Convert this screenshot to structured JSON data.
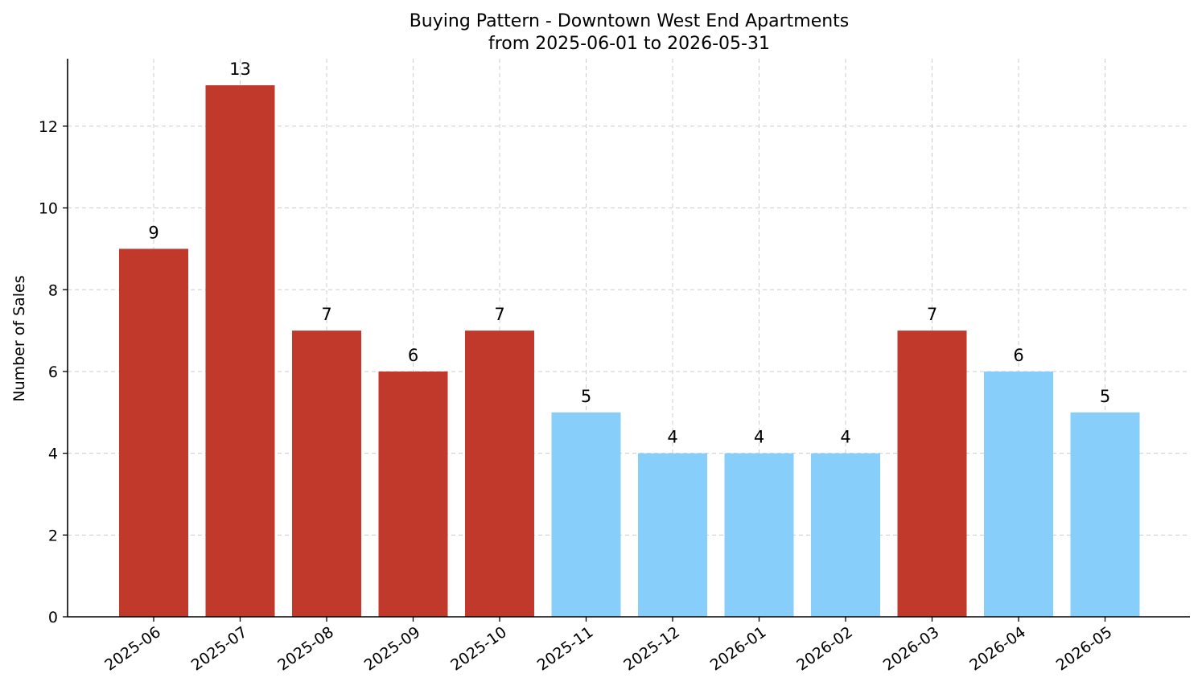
{
  "chart_data": {
    "type": "bar",
    "title": "Buying Pattern - Downtown West End Apartments",
    "subtitle": "from 2025-06-01 to 2026-05-31",
    "xlabel": "",
    "ylabel": "Number of Sales",
    "categories": [
      "2025-06",
      "2025-07",
      "2025-08",
      "2025-09",
      "2025-10",
      "2025-11",
      "2025-12",
      "2026-01",
      "2026-02",
      "2026-03",
      "2026-04",
      "2026-05"
    ],
    "values": [
      9,
      13,
      7,
      6,
      7,
      5,
      4,
      4,
      4,
      7,
      6,
      5
    ],
    "bar_colors": [
      "#c0392b",
      "#c0392b",
      "#c0392b",
      "#c0392b",
      "#c0392b",
      "#87cefa",
      "#87cefa",
      "#87cefa",
      "#87cefa",
      "#c0392b",
      "#87cefa",
      "#87cefa"
    ],
    "ylim": [
      0,
      13.65
    ],
    "yticks": [
      0,
      2,
      4,
      6,
      8,
      10,
      12
    ],
    "grid": true,
    "data_labels": true
  }
}
